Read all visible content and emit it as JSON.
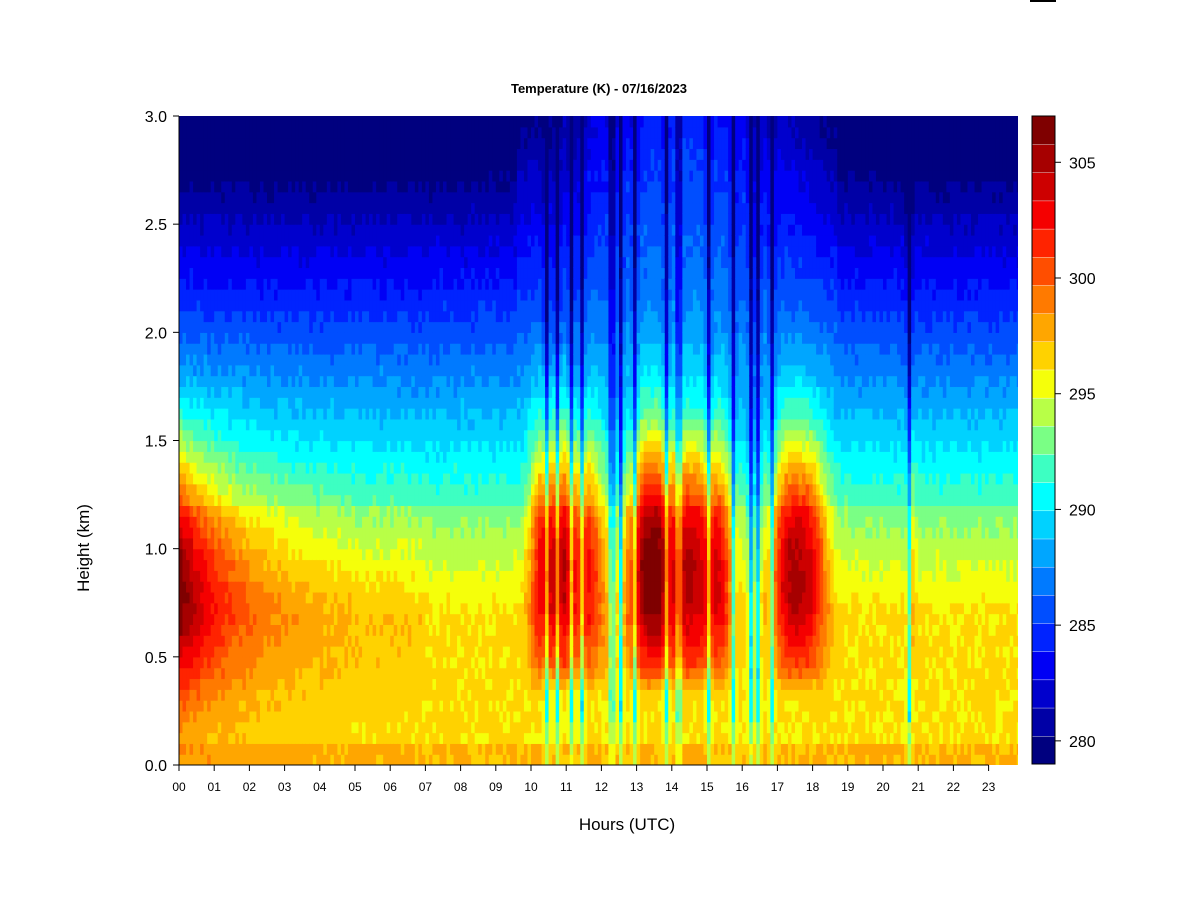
{
  "chart_data": {
    "type": "heatmap",
    "title": "Temperature (K) - 07/16/2023",
    "xlabel": "Hours (UTC)",
    "ylabel": "Height (km)",
    "x_ticks": [
      "00",
      "01",
      "02",
      "03",
      "04",
      "05",
      "06",
      "07",
      "08",
      "09",
      "10",
      "11",
      "12",
      "13",
      "14",
      "15",
      "16",
      "17",
      "18",
      "19",
      "20",
      "21",
      "22",
      "23"
    ],
    "y_ticks": [
      "0.0",
      "0.5",
      "1.0",
      "1.5",
      "2.0",
      "2.5",
      "3.0"
    ],
    "y_tick_values": [
      0,
      0.5,
      1.0,
      1.5,
      2.0,
      2.5,
      3.0
    ],
    "xlim": [
      0,
      24
    ],
    "ylim": [
      0,
      3.0
    ],
    "colorbar": {
      "ticks": [
        "280",
        "285",
        "290",
        "295",
        "300",
        "305"
      ],
      "tick_values": [
        280,
        285,
        290,
        295,
        300,
        305
      ],
      "range": [
        279,
        307
      ],
      "colors": [
        "#00007f",
        "#0000a6",
        "#0000cd",
        "#0000f5",
        "#0023ff",
        "#004eff",
        "#007aff",
        "#00a6ff",
        "#00d2ff",
        "#00ffff",
        "#3dffc2",
        "#7aff85",
        "#b8ff47",
        "#f5ff0a",
        "#ffd200",
        "#ffa600",
        "#ff7a00",
        "#ff4e00",
        "#ff2300",
        "#f50000",
        "#cd0000",
        "#a60000",
        "#7f0000"
      ]
    },
    "grid": false,
    "description_points": {
      "times_hours": [
        0,
        1,
        2,
        4,
        6,
        8,
        9.8,
        10.8,
        11.2,
        12.5,
        13.5,
        14.7,
        15.0,
        16.2,
        17.5,
        18.5,
        19,
        20.8,
        22,
        23.9
      ],
      "peak_temp_K_at_1km": [
        306,
        302,
        299,
        298,
        297,
        296,
        298,
        305,
        303,
        289,
        304,
        306,
        290,
        291,
        304,
        300,
        296,
        299,
        296,
        296
      ]
    }
  }
}
